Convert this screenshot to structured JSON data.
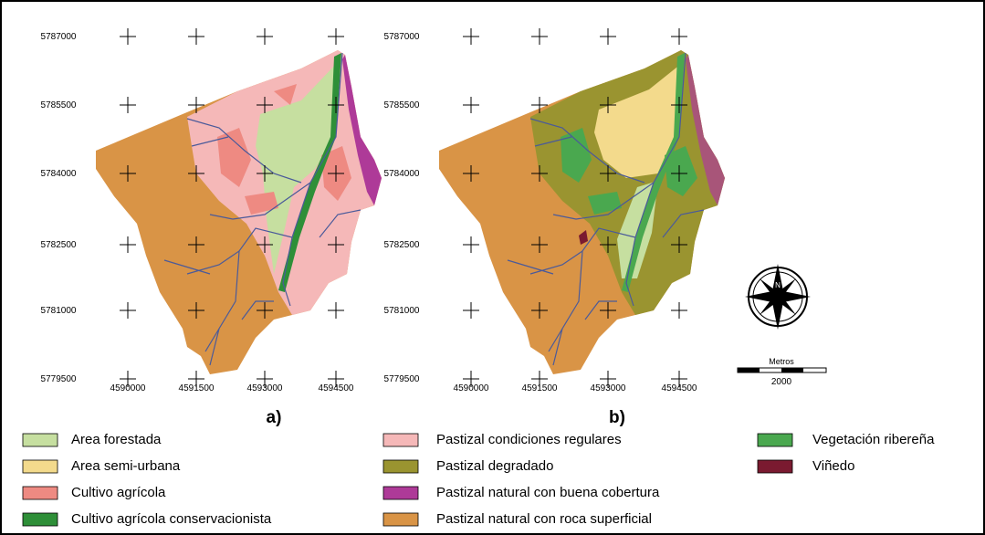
{
  "maps": [
    {
      "label": "a)",
      "y_labels": [
        5787000,
        5785500,
        5784000,
        5782500,
        5781000,
        5779500
      ],
      "x_labels": [
        4590000,
        4591500,
        4593000,
        4594500
      ]
    },
    {
      "label": "b)",
      "y_labels": [
        5787000,
        5785500,
        5784000,
        5782500,
        5781000,
        5779500
      ],
      "x_labels": [
        4590000,
        4591500,
        4593000,
        4594500
      ]
    }
  ],
  "scale": {
    "title": "Metros",
    "value": 2000
  },
  "legend": [
    {
      "name": "Area forestada",
      "color": "#c6dfa0"
    },
    {
      "name": "Area semi-urbana",
      "color": "#f3da8c"
    },
    {
      "name": "Cultivo agrícola",
      "color": "#ee8a82"
    },
    {
      "name": "Cultivo agrícola conservacionista",
      "color": "#2e8f38"
    },
    {
      "name": "Pastizal condiciones regulares",
      "color": "#f5b8b8"
    },
    {
      "name": "Pastizal degradado",
      "color": "#9a9430"
    },
    {
      "name": "Pastizal natural con buena cobertura",
      "color": "#ae3a98"
    },
    {
      "name": "Pastizal natural con roca superficial",
      "color": "#d99446"
    },
    {
      "name": "Vegetación ribereña",
      "color": "#4aa84f"
    },
    {
      "name": "Viñedo",
      "color": "#7a1a30"
    }
  ]
}
